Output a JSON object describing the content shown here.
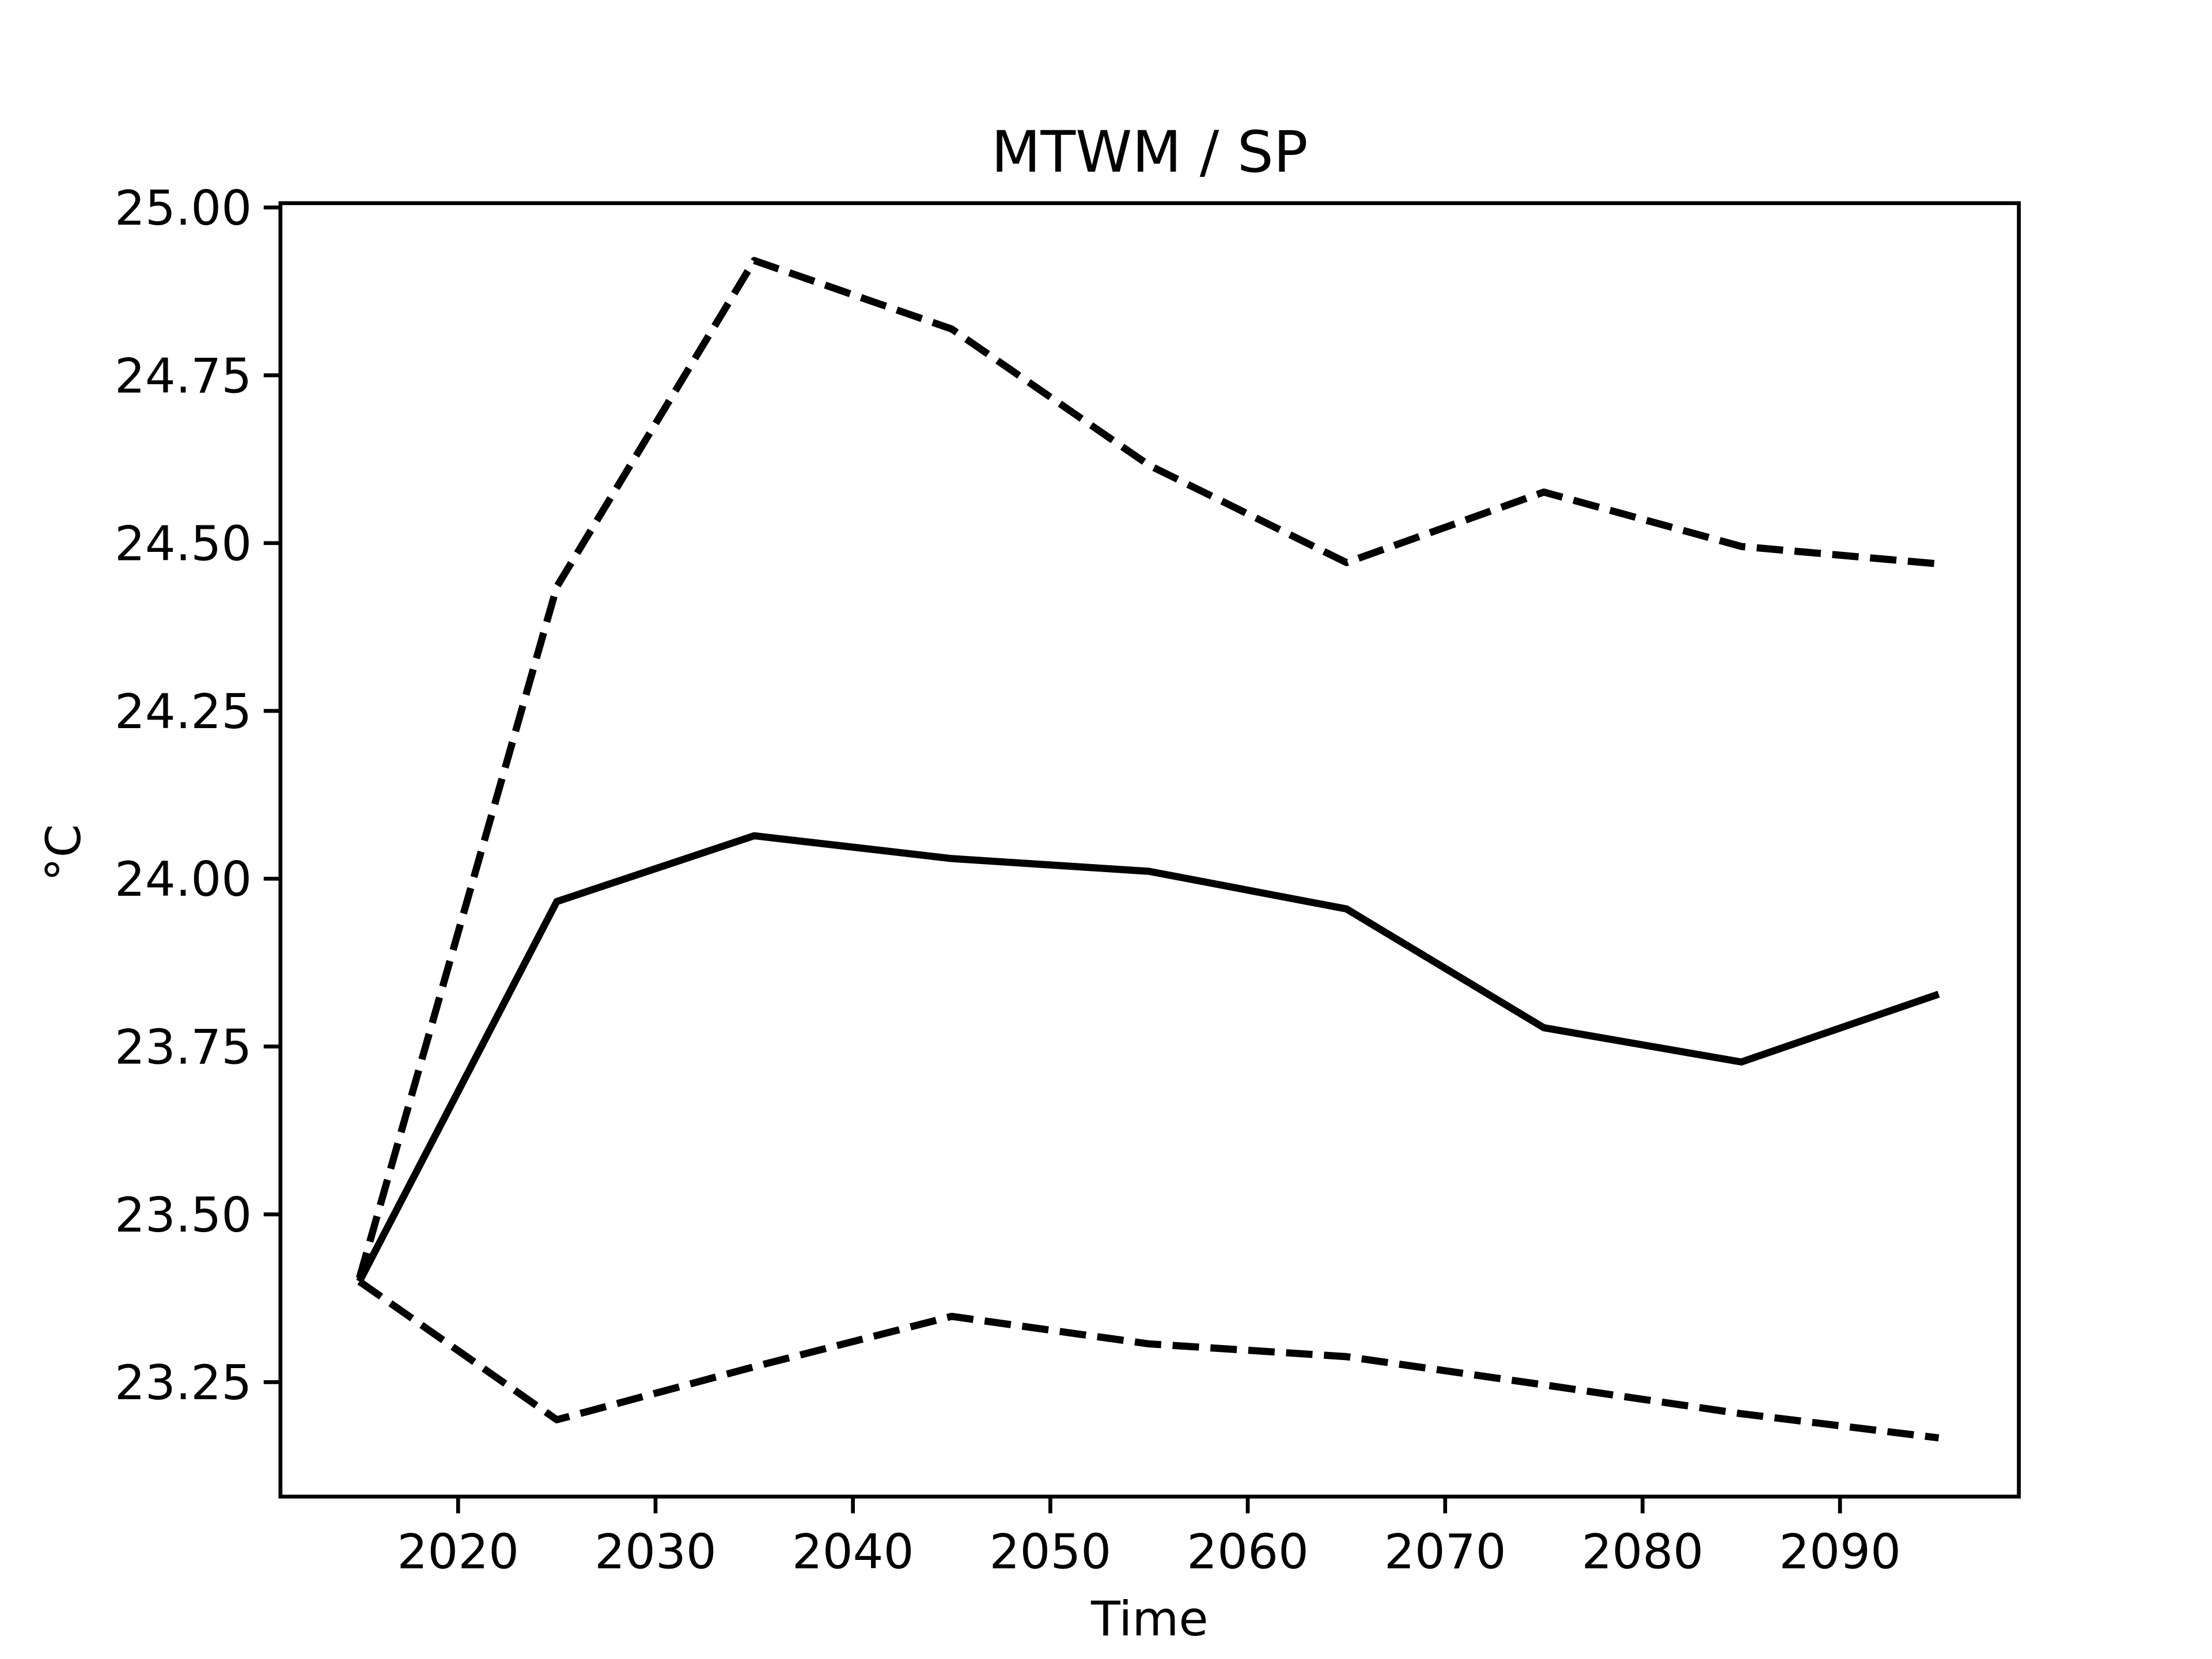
{
  "chart_data": {
    "type": "line",
    "title": "MTWM / SP",
    "xlabel": "Time",
    "ylabel": "°C",
    "x": [
      2015,
      2025,
      2035,
      2045,
      2055,
      2065,
      2075,
      2085,
      2095
    ],
    "series": [
      {
        "color": "#000000",
        "style": "solid",
        "values": [
          23.4,
          23.966,
          24.064,
          24.03,
          24.011,
          23.955,
          23.778,
          23.727,
          23.828
        ]
      },
      {
        "color": "#000000",
        "style": "dashed",
        "values": [
          23.405,
          24.435,
          24.921,
          24.819,
          24.616,
          24.471,
          24.576,
          24.495,
          24.469
        ]
      },
      {
        "color": "#000000",
        "style": "dashed",
        "values": [
          23.4,
          23.194,
          23.273,
          23.348,
          23.307,
          23.288,
          23.246,
          23.203,
          23.167
        ]
      }
    ],
    "xlim": [
      2011,
      2099.06
    ],
    "xticks": [
      2020,
      2030,
      2040,
      2050,
      2060,
      2070,
      2080,
      2090
    ],
    "ylim": [
      23.0795,
      25.0064
    ],
    "yticks": [
      {
        "value": 23.25,
        "label": "23.25"
      },
      {
        "value": 23.5,
        "label": "23.50"
      },
      {
        "value": 23.75,
        "label": "23.75"
      },
      {
        "value": 24,
        "label": "24.00"
      },
      {
        "value": 24.25,
        "label": "24.25"
      },
      {
        "value": 24.5,
        "label": "24.50"
      },
      {
        "value": 24.75,
        "label": "24.75"
      },
      {
        "value": 25,
        "label": "25.00"
      }
    ],
    "grid": false
  }
}
